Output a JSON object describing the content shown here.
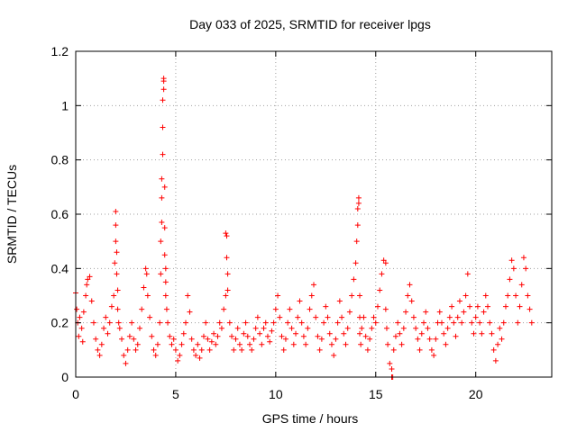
{
  "chart_data": {
    "type": "scatter",
    "title": "Day 033 of 2025, SRMTID for receiver lpgs",
    "xlabel": "GPS time / hours",
    "ylabel": "SRMTID / TECUs",
    "xlim": [
      0,
      23.8
    ],
    "ylim": [
      0,
      1.2
    ],
    "xticks": [
      0,
      5,
      10,
      15,
      20
    ],
    "yticks": [
      0,
      0.2,
      0.4,
      0.6,
      0.8,
      1,
      1.2
    ],
    "ytick_labels": [
      "0",
      "0.2",
      "0.4",
      "0.6",
      "0.8",
      "1",
      "1.2"
    ],
    "grid": true,
    "marker": "+",
    "color": "#ff0000",
    "series": [
      {
        "name": "SRMTID",
        "x": [
          0.0,
          0.05,
          0.1,
          0.15,
          0.2,
          0.3,
          0.35,
          0.4,
          0.5,
          0.55,
          0.6,
          0.7,
          0.8,
          0.9,
          1.0,
          1.1,
          1.2,
          1.3,
          1.4,
          1.5,
          1.6,
          1.7,
          1.8,
          1.9,
          1.95,
          2.0,
          2.0,
          2.0,
          2.05,
          2.05,
          2.1,
          2.1,
          2.15,
          2.2,
          2.3,
          2.4,
          2.5,
          2.6,
          2.7,
          2.8,
          2.9,
          3.0,
          3.1,
          3.2,
          3.3,
          3.4,
          3.5,
          3.55,
          3.6,
          3.7,
          3.8,
          3.9,
          4.0,
          4.1,
          4.2,
          4.25,
          4.25,
          4.3,
          4.3,
          4.3,
          4.35,
          4.35,
          4.35,
          4.4,
          4.4,
          4.4,
          4.45,
          4.45,
          4.45,
          4.5,
          4.5,
          4.5,
          4.55,
          4.6,
          4.7,
          4.8,
          4.9,
          5.0,
          5.1,
          5.2,
          5.3,
          5.4,
          5.5,
          5.6,
          5.7,
          5.8,
          5.9,
          6.0,
          6.1,
          6.2,
          6.3,
          6.4,
          6.5,
          6.6,
          6.7,
          6.8,
          6.9,
          7.0,
          7.1,
          7.2,
          7.3,
          7.4,
          7.5,
          7.5,
          7.55,
          7.55,
          7.6,
          7.6,
          7.7,
          7.8,
          7.9,
          8.0,
          8.1,
          8.2,
          8.3,
          8.4,
          8.5,
          8.6,
          8.7,
          8.8,
          8.9,
          9.0,
          9.1,
          9.2,
          9.3,
          9.4,
          9.5,
          9.6,
          9.7,
          9.8,
          9.9,
          10.0,
          10.1,
          10.2,
          10.3,
          10.4,
          10.5,
          10.6,
          10.7,
          10.8,
          10.9,
          11.0,
          11.1,
          11.2,
          11.3,
          11.4,
          11.5,
          11.6,
          11.7,
          11.8,
          11.9,
          12.0,
          12.1,
          12.2,
          12.3,
          12.4,
          12.5,
          12.6,
          12.7,
          12.8,
          12.9,
          13.0,
          13.1,
          13.2,
          13.3,
          13.4,
          13.5,
          13.6,
          13.7,
          13.8,
          13.9,
          14.0,
          14.05,
          14.1,
          14.1,
          14.15,
          14.15,
          14.2,
          14.2,
          14.2,
          14.25,
          14.3,
          14.4,
          14.5,
          14.6,
          14.7,
          14.8,
          14.9,
          15.0,
          15.1,
          15.2,
          15.3,
          15.4,
          15.5,
          15.5,
          15.55,
          15.6,
          15.7,
          15.8,
          15.8,
          15.85,
          15.9,
          16.0,
          16.1,
          16.2,
          16.3,
          16.4,
          16.5,
          16.6,
          16.7,
          16.8,
          16.9,
          17.0,
          17.1,
          17.2,
          17.3,
          17.4,
          17.5,
          17.6,
          17.7,
          17.8,
          17.9,
          18.0,
          18.1,
          18.2,
          18.3,
          18.4,
          18.5,
          18.6,
          18.7,
          18.8,
          18.9,
          19.0,
          19.1,
          19.2,
          19.3,
          19.4,
          19.5,
          19.6,
          19.7,
          19.8,
          19.9,
          20.0,
          20.1,
          20.2,
          20.3,
          20.4,
          20.5,
          20.6,
          20.7,
          20.8,
          20.9,
          21.0,
          21.1,
          21.2,
          21.3,
          21.4,
          21.5,
          21.6,
          21.7,
          21.8,
          21.9,
          22.0,
          22.1,
          22.2,
          22.3,
          22.4,
          22.5,
          22.6,
          22.7,
          22.8
        ],
        "y": [
          0.31,
          0.25,
          0.2,
          0.15,
          0.22,
          0.18,
          0.13,
          0.24,
          0.3,
          0.34,
          0.36,
          0.37,
          0.28,
          0.2,
          0.14,
          0.1,
          0.08,
          0.12,
          0.18,
          0.22,
          0.16,
          0.2,
          0.26,
          0.3,
          0.42,
          0.5,
          0.56,
          0.61,
          0.46,
          0.38,
          0.32,
          0.25,
          0.2,
          0.18,
          0.14,
          0.08,
          0.05,
          0.1,
          0.15,
          0.2,
          0.14,
          0.1,
          0.12,
          0.18,
          0.25,
          0.33,
          0.4,
          0.38,
          0.3,
          0.22,
          0.15,
          0.1,
          0.08,
          0.12,
          0.2,
          0.38,
          0.5,
          0.57,
          0.66,
          0.73,
          0.82,
          0.92,
          1.02,
          1.06,
          1.09,
          1.1,
          0.7,
          0.55,
          0.45,
          0.4,
          0.35,
          0.3,
          0.25,
          0.2,
          0.15,
          0.12,
          0.14,
          0.1,
          0.06,
          0.08,
          0.12,
          0.16,
          0.2,
          0.3,
          0.24,
          0.14,
          0.1,
          0.08,
          0.12,
          0.07,
          0.1,
          0.15,
          0.2,
          0.14,
          0.1,
          0.13,
          0.16,
          0.12,
          0.15,
          0.2,
          0.18,
          0.25,
          0.3,
          0.53,
          0.52,
          0.44,
          0.38,
          0.32,
          0.2,
          0.15,
          0.1,
          0.14,
          0.18,
          0.12,
          0.1,
          0.16,
          0.2,
          0.15,
          0.12,
          0.1,
          0.14,
          0.18,
          0.22,
          0.16,
          0.12,
          0.18,
          0.2,
          0.15,
          0.13,
          0.17,
          0.2,
          0.25,
          0.3,
          0.22,
          0.15,
          0.1,
          0.14,
          0.2,
          0.25,
          0.18,
          0.12,
          0.16,
          0.22,
          0.28,
          0.2,
          0.15,
          0.12,
          0.18,
          0.25,
          0.3,
          0.34,
          0.22,
          0.15,
          0.1,
          0.14,
          0.2,
          0.26,
          0.22,
          0.16,
          0.12,
          0.08,
          0.14,
          0.2,
          0.28,
          0.22,
          0.16,
          0.12,
          0.18,
          0.24,
          0.3,
          0.36,
          0.42,
          0.5,
          0.56,
          0.62,
          0.64,
          0.66,
          0.3,
          0.22,
          0.16,
          0.12,
          0.18,
          0.22,
          0.15,
          0.1,
          0.14,
          0.18,
          0.22,
          0.2,
          0.26,
          0.32,
          0.38,
          0.43,
          0.42,
          0.25,
          0.18,
          0.12,
          0.05,
          0.03,
          0.0,
          0.0,
          0.1,
          0.15,
          0.2,
          0.16,
          0.12,
          0.18,
          0.24,
          0.3,
          0.34,
          0.28,
          0.22,
          0.18,
          0.14,
          0.1,
          0.16,
          0.2,
          0.24,
          0.18,
          0.14,
          0.1,
          0.08,
          0.14,
          0.2,
          0.24,
          0.2,
          0.16,
          0.12,
          0.18,
          0.22,
          0.26,
          0.2,
          0.15,
          0.22,
          0.28,
          0.2,
          0.24,
          0.3,
          0.38,
          0.26,
          0.2,
          0.16,
          0.22,
          0.26,
          0.2,
          0.16,
          0.24,
          0.3,
          0.26,
          0.2,
          0.16,
          0.1,
          0.06,
          0.12,
          0.18,
          0.14,
          0.2,
          0.26,
          0.3,
          0.36,
          0.43,
          0.4,
          0.3,
          0.2,
          0.26,
          0.34,
          0.44,
          0.4,
          0.3,
          0.25,
          0.2
        ]
      }
    ]
  }
}
